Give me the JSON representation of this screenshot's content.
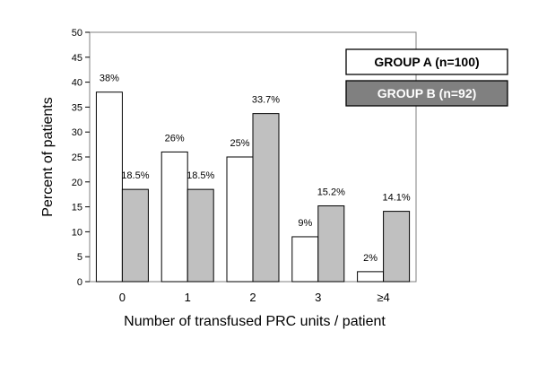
{
  "chart_data": {
    "type": "bar",
    "categories": [
      "0",
      "1",
      "2",
      "3",
      "≥4"
    ],
    "series": [
      {
        "name": "GROUP A (n=100)",
        "values": [
          38,
          26,
          25,
          9,
          2
        ],
        "labels": [
          "38%",
          "26%",
          "25%",
          "9%",
          "2%"
        ],
        "color": "#ffffff"
      },
      {
        "name": "GROUP B (n=92)",
        "values": [
          18.5,
          18.5,
          33.7,
          15.2,
          14.1
        ],
        "labels": [
          "18.5%",
          "18.5%",
          "33.7%",
          "15.2%",
          "14.1%"
        ],
        "color": "#c0c0c0"
      }
    ],
    "yticks": [
      "0",
      "5",
      "10",
      "15",
      "20",
      "25",
      "30",
      "35",
      "40",
      "45",
      "50"
    ],
    "ylim": [
      0,
      50
    ],
    "xlabel": "Number of transfused PRC units / patient",
    "ylabel": "Percent of patients",
    "grid": false,
    "legend_position": "top-right"
  }
}
